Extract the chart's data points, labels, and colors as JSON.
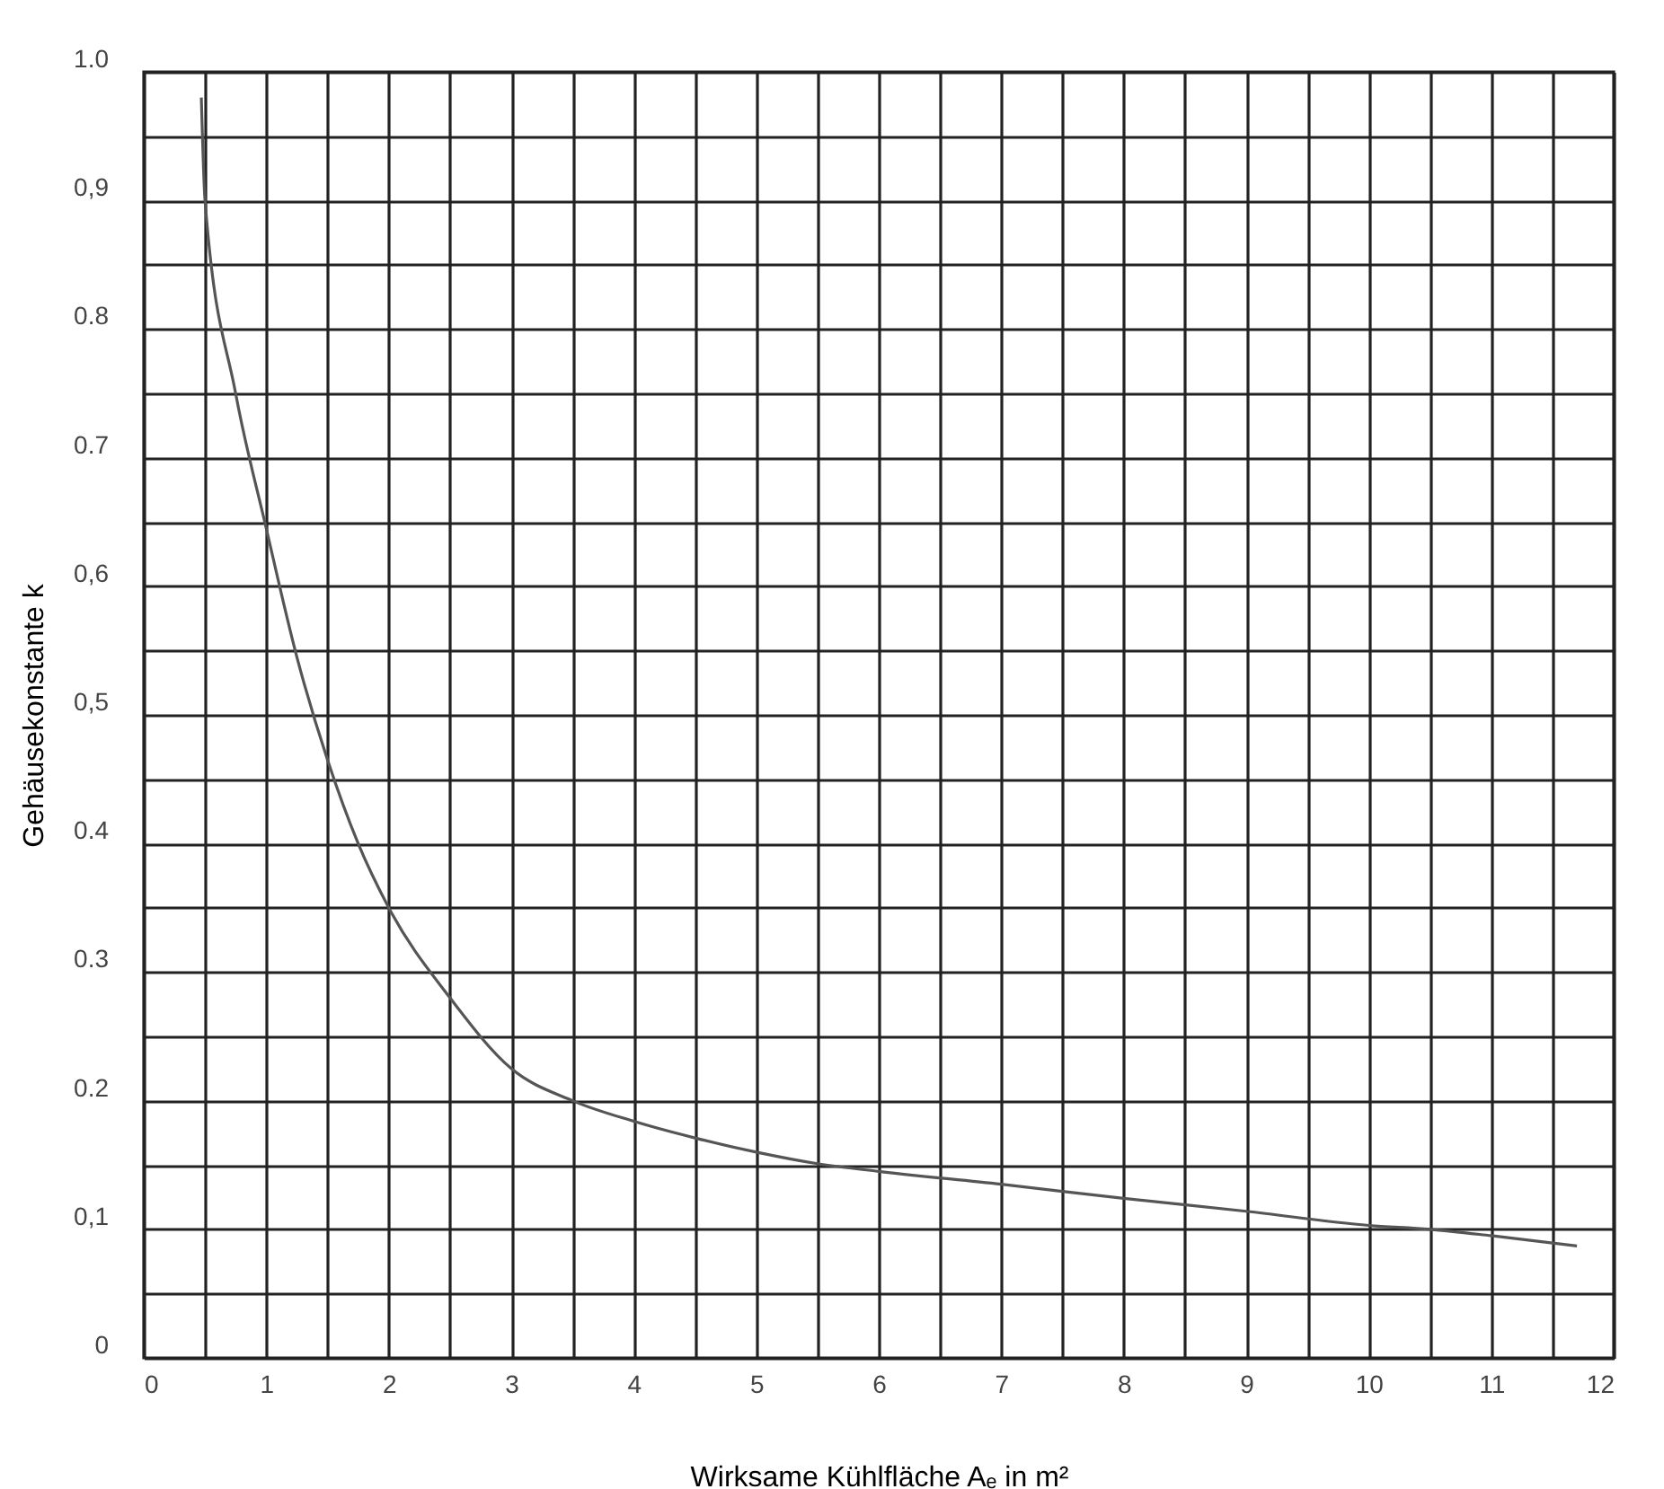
{
  "chart_data": {
    "type": "line",
    "xlabel": "Wirksame Kühlfläche Aₑ in m²",
    "ylabel": "Gehäusekonstante k",
    "x": [
      0.47,
      0.5,
      0.75,
      1,
      1.25,
      1.5,
      1.75,
      2,
      2.5,
      3,
      3.5,
      4,
      4.5,
      5,
      5.5,
      6,
      7,
      8,
      9,
      10,
      10.5,
      11,
      11.7
    ],
    "series": [
      {
        "color": "#555555",
        "values": [
          0.98,
          0.9,
          0.75,
          0.645,
          0.545,
          0.465,
          0.4,
          0.35,
          0.28,
          0.225,
          0.2,
          0.184,
          0.171,
          0.16,
          0.151,
          0.145,
          0.135,
          0.124,
          0.114,
          0.103,
          0.1,
          0.095,
          0.087
        ]
      }
    ],
    "xlim": [
      0,
      12
    ],
    "xticks": [
      0,
      {
        "value": 0.5,
        "label": null
      },
      1,
      {
        "value": 1.5,
        "label": null
      },
      2,
      {
        "value": 2.5,
        "label": null
      },
      3,
      {
        "value": 3.5,
        "label": null
      },
      4,
      {
        "value": 4.5,
        "label": null
      },
      5,
      {
        "value": 5.5,
        "label": null
      },
      6,
      {
        "value": 6.5,
        "label": null
      },
      7,
      {
        "value": 7.5,
        "label": null
      },
      8,
      {
        "value": 8.5,
        "label": null
      },
      9,
      {
        "value": 9.5,
        "label": null
      },
      10,
      {
        "value": 10.5,
        "label": null
      },
      11,
      {
        "value": 11.5,
        "label": null
      },
      12
    ],
    "ylim": [
      0,
      1
    ],
    "yticks": [
      {
        "value": 0,
        "label": "0"
      },
      {
        "value": 0.05,
        "label": null
      },
      {
        "value": 0.1,
        "label": "0,1"
      },
      {
        "value": 0.15,
        "label": null
      },
      {
        "value": 0.2,
        "label": "0.2"
      },
      {
        "value": 0.25,
        "label": null
      },
      {
        "value": 0.3,
        "label": "0.3"
      },
      {
        "value": 0.35,
        "label": null
      },
      {
        "value": 0.4,
        "label": "0.4"
      },
      {
        "value": 0.45,
        "label": null
      },
      {
        "value": 0.5,
        "label": "0,5"
      },
      {
        "value": 0.55,
        "label": null
      },
      {
        "value": 0.6,
        "label": "0,6"
      },
      {
        "value": 0.65,
        "label": null
      },
      {
        "value": 0.7,
        "label": "0.7"
      },
      {
        "value": 0.75,
        "label": null
      },
      {
        "value": 0.8,
        "label": "0.8"
      },
      {
        "value": 0.85,
        "label": null
      },
      {
        "value": 0.9,
        "label": "0,9"
      },
      {
        "value": 0.95,
        "label": null
      },
      {
        "value": 1.0,
        "label": "1.0"
      }
    ],
    "grid": true,
    "marker": "none",
    "line_style": "solid",
    "legend": false
  }
}
